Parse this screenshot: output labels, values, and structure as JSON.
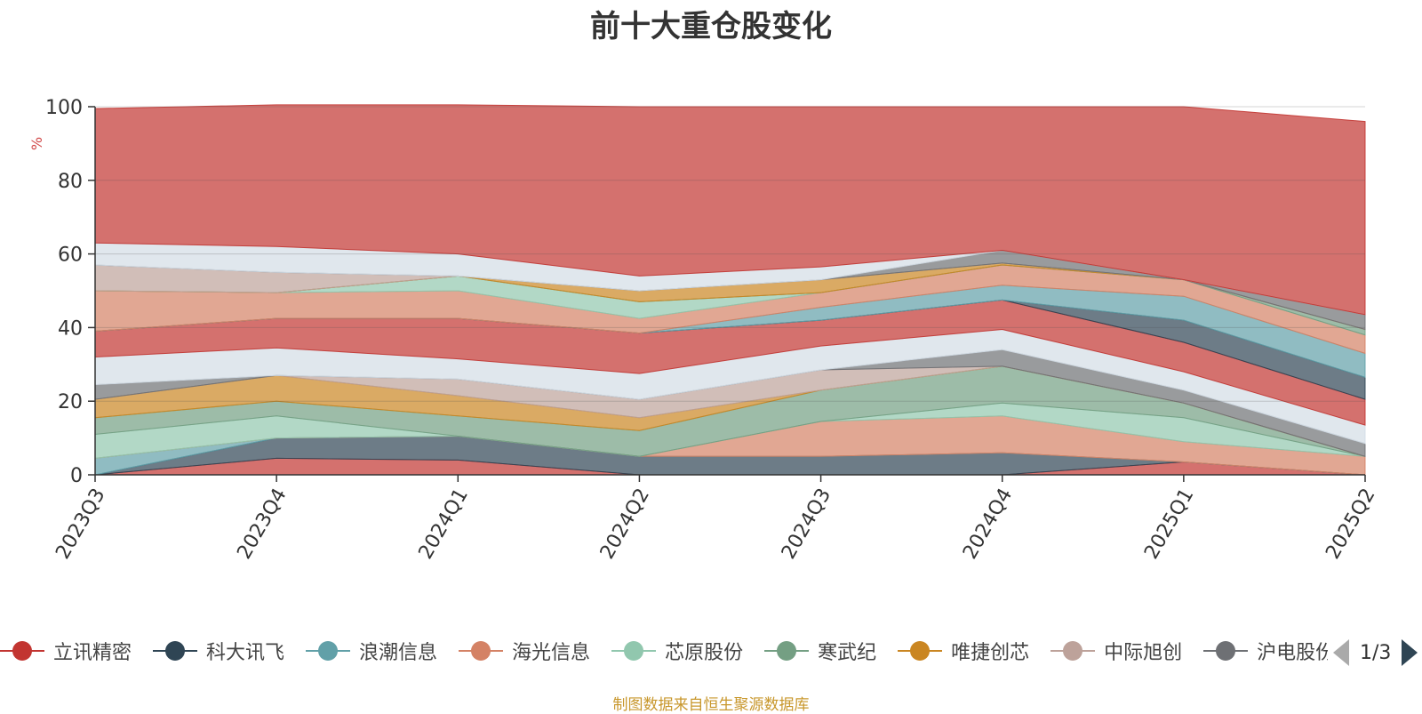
{
  "title": "前十大重仓股变化",
  "unit_label": "%",
  "footer": "制图数据来自恒生聚源数据库",
  "legend_page": "1/3",
  "legend": [
    {
      "label": "立讯精密",
      "color": "#c23531"
    },
    {
      "label": "科大讯飞",
      "color": "#2f4554"
    },
    {
      "label": "浪潮信息",
      "color": "#61a0a8"
    },
    {
      "label": "海光信息",
      "color": "#d48265"
    },
    {
      "label": "芯原股份",
      "color": "#91c7ae"
    },
    {
      "label": "寒武纪",
      "color": "#749f83"
    },
    {
      "label": "唯捷创芯",
      "color": "#ca8622"
    },
    {
      "label": "中际旭创",
      "color": "#bda29a"
    },
    {
      "label": "沪电股份",
      "color": "#6e7074"
    }
  ],
  "chart_data": {
    "type": "area",
    "stacked": true,
    "title": "前十大重仓股变化",
    "ylabel": "%",
    "ylim": [
      0,
      100
    ],
    "yticks": [
      0,
      20,
      40,
      60,
      80,
      100
    ],
    "grid": true,
    "legend_position": "bottom",
    "categories": [
      "2023Q3",
      "2023Q4",
      "2024Q1",
      "2024Q2",
      "2024Q3",
      "2024Q4",
      "2025Q1",
      "2025Q2"
    ],
    "layers": [
      {
        "color": "#c23531",
        "values": [
          0,
          4.5,
          4,
          0,
          0,
          0,
          3.5,
          0
        ]
      },
      {
        "color": "#2f4554",
        "values": [
          0,
          5.5,
          6.5,
          5,
          5,
          6,
          0,
          0
        ]
      },
      {
        "color": "#61a0a8",
        "values": [
          4.5,
          0,
          0,
          0,
          0,
          0,
          0,
          0
        ]
      },
      {
        "color": "#d48265",
        "values": [
          0,
          0,
          0,
          0,
          9.5,
          10,
          5.5,
          5
        ]
      },
      {
        "color": "#91c7ae",
        "values": [
          6.5,
          6,
          0,
          0,
          0,
          3.5,
          6.5,
          0
        ]
      },
      {
        "color": "#749f83",
        "values": [
          4.5,
          4,
          5.5,
          7,
          8.5,
          10,
          4,
          0
        ]
      },
      {
        "color": "#ca8622",
        "values": [
          5,
          7,
          5.5,
          3.5,
          0,
          0,
          0,
          0
        ]
      },
      {
        "color": "#bda29a",
        "values": [
          0,
          0,
          4.5,
          5,
          5.5,
          0,
          0,
          0
        ]
      },
      {
        "color": "#6e7074",
        "values": [
          4,
          0,
          0,
          0,
          0,
          4.5,
          3.5,
          3.5
        ]
      },
      {
        "color": "#d3dde6",
        "values": [
          7.5,
          7.5,
          5.5,
          7,
          6.5,
          5.5,
          5,
          5
        ]
      },
      {
        "color": "#c23531",
        "values": [
          7,
          8,
          11,
          11,
          7,
          8,
          8,
          7
        ]
      },
      {
        "color": "#2f4554",
        "values": [
          0,
          0,
          0,
          0,
          0,
          0,
          6,
          6
        ]
      },
      {
        "color": "#61a0a8",
        "values": [
          0,
          0,
          0,
          0,
          3.5,
          4,
          6.5,
          6.5
        ]
      },
      {
        "color": "#d48265",
        "values": [
          11,
          7,
          7.5,
          4,
          4,
          5.5,
          4.5,
          5
        ]
      },
      {
        "color": "#91c7ae",
        "values": [
          0,
          0,
          4,
          4.5,
          0,
          0,
          0,
          0
        ]
      },
      {
        "color": "#749f83",
        "values": [
          0,
          0,
          0,
          0,
          0,
          0,
          0,
          1.5
        ]
      },
      {
        "color": "#ca8622",
        "values": [
          0,
          0,
          0,
          3,
          3.5,
          0.5,
          0,
          0
        ]
      },
      {
        "color": "#bda29a",
        "values": [
          7,
          5.5,
          0,
          0,
          0,
          0,
          0,
          0
        ]
      },
      {
        "color": "#6e7074",
        "values": [
          0,
          0,
          0,
          0,
          0,
          3.5,
          0,
          4
        ]
      },
      {
        "color": "#d3dde6",
        "values": [
          6,
          7,
          6,
          4,
          3.5,
          0,
          0,
          0
        ]
      },
      {
        "color": "#c23531",
        "values": [
          36.5,
          38.5,
          40.5,
          46,
          43.5,
          39,
          47,
          52.5
        ]
      }
    ]
  }
}
